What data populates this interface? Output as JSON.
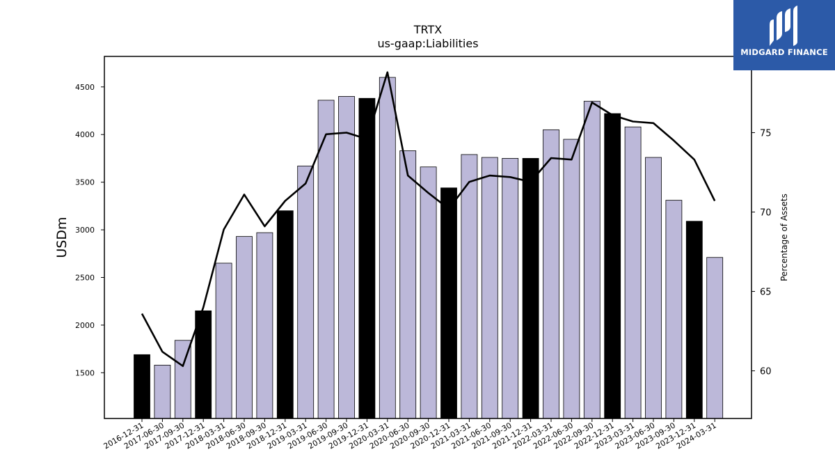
{
  "brand": {
    "name": "MIDGARD FINANCE",
    "icon": "midgard-finance-logo-icon",
    "color": "#2c5aa8"
  },
  "chart_data": {
    "type": "bar",
    "title": "TRTX",
    "subtitle": "us-gaap:Liabilities",
    "ylabel": "USDm",
    "y2label": "Percentage of Assets",
    "ylim": [
      1020,
      4820
    ],
    "y2lim": [
      57.0,
      79.8
    ],
    "yticks": [
      1500,
      2000,
      2500,
      3000,
      3500,
      4000,
      4500
    ],
    "y2ticks": [
      60,
      65,
      70,
      75
    ],
    "grid": false,
    "legend": "none",
    "colors": {
      "bar": "#bcb8d9",
      "bar_year_end": "#000000",
      "line": "#000000"
    },
    "categories": [
      "2016-12-31",
      "2017-06-30",
      "2017-09-30",
      "2017-12-31",
      "2018-03-31",
      "2018-06-30",
      "2018-09-30",
      "2018-12-31",
      "2019-03-31",
      "2019-06-30",
      "2019-09-30",
      "2019-12-31",
      "2020-03-31",
      "2020-06-30",
      "2020-09-30",
      "2020-12-31",
      "2021-03-31",
      "2021-06-30",
      "2021-09-30",
      "2021-12-31",
      "2022-03-31",
      "2022-06-30",
      "2022-09-30",
      "2022-12-31",
      "2023-03-31",
      "2023-06-30",
      "2023-09-30",
      "2023-12-31",
      "2024-03-31"
    ],
    "values": [
      1690,
      1580,
      1840,
      2150,
      2650,
      2930,
      2970,
      3200,
      3670,
      4360,
      4400,
      4380,
      4600,
      3830,
      3660,
      3440,
      3790,
      3760,
      3750,
      3750,
      4050,
      3950,
      4350,
      4220,
      4080,
      3760,
      3310,
      3090,
      2710
    ],
    "highlight": [
      true,
      false,
      false,
      true,
      false,
      false,
      false,
      true,
      false,
      false,
      false,
      true,
      false,
      false,
      false,
      true,
      false,
      false,
      false,
      true,
      false,
      false,
      false,
      true,
      false,
      false,
      false,
      true,
      false
    ],
    "pct_of_assets": [
      63.6,
      61.2,
      60.3,
      64.0,
      68.9,
      71.1,
      69.1,
      70.7,
      71.8,
      74.9,
      75.0,
      74.6,
      78.8,
      72.3,
      71.2,
      70.2,
      71.9,
      72.3,
      72.2,
      71.9,
      73.4,
      73.3,
      76.9,
      76.1,
      75.7,
      75.6,
      74.5,
      73.3,
      70.7
    ]
  }
}
